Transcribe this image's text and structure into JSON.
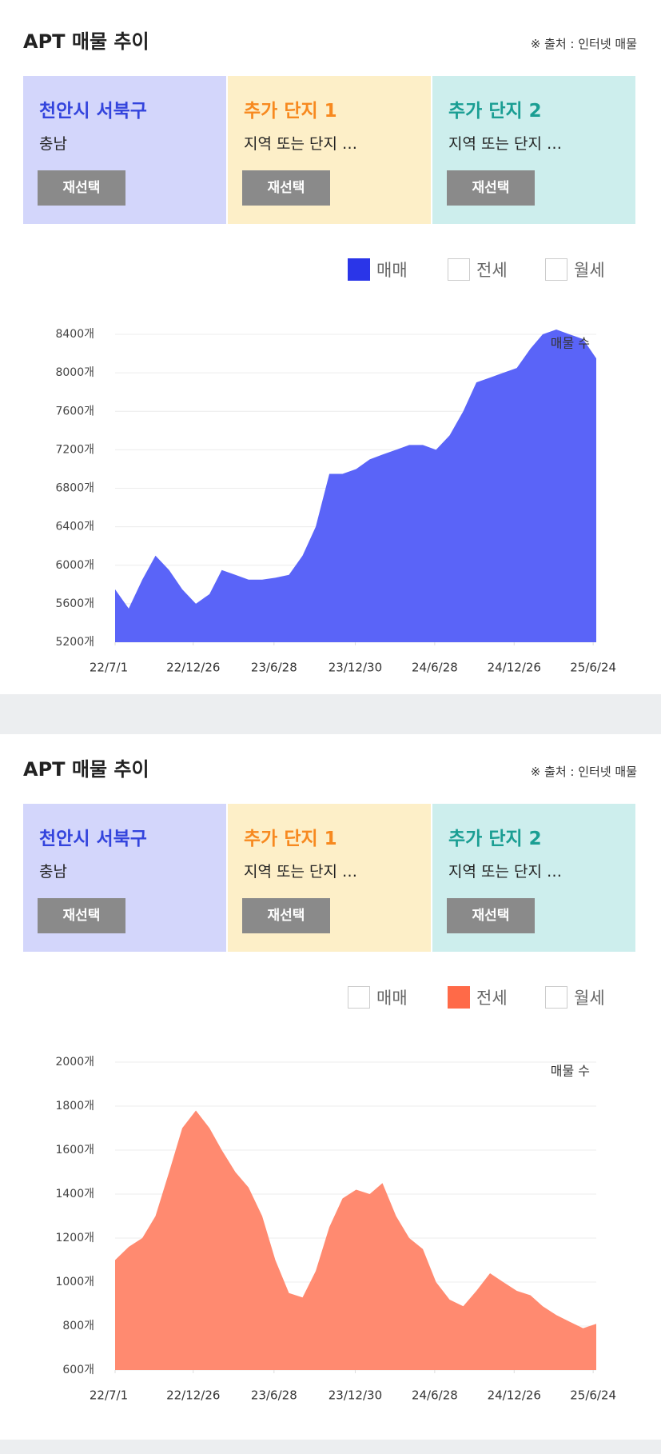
{
  "chart_data": [
    {
      "type": "area",
      "title": "APT 매물 추이",
      "source": "※ 출처 : 인터넷 매물",
      "panels": [
        {
          "title": "천안시 서북구",
          "subtitle": "충남",
          "button": "재선택"
        },
        {
          "title": "추가 단지 1",
          "subtitle": "지역 또는 단지 …",
          "button": "재선택"
        },
        {
          "title": "추가 단지 2",
          "subtitle": "지역 또는 단지 …",
          "button": "재선택"
        }
      ],
      "options": [
        "매매",
        "전세",
        "월세"
      ],
      "selected": 0,
      "check_color": "#2a35e8",
      "x": [
        "22/7/1",
        "22/8/1",
        "22/9/1",
        "22/10/1",
        "22/11/1",
        "22/12/1",
        "23/1/1",
        "23/2/1",
        "23/3/1",
        "23/4/1",
        "23/5/1",
        "23/6/1",
        "23/7/1",
        "23/8/1",
        "23/9/1",
        "23/10/1",
        "23/11/1",
        "23/12/1",
        "24/1/1",
        "24/2/1",
        "24/3/1",
        "24/4/1",
        "24/5/1",
        "24/6/1",
        "24/7/1",
        "24/8/1",
        "24/9/1",
        "24/10/1",
        "24/11/1",
        "24/12/1",
        "25/1/1",
        "25/2/1",
        "25/3/1",
        "25/4/1",
        "25/5/1",
        "25/6/1",
        "25/7/1"
      ],
      "series": [
        {
          "name": "매물 수",
          "color": "#5a64f8",
          "values": [
            5750,
            5550,
            5850,
            6100,
            5950,
            5750,
            5600,
            5700,
            5950,
            5900,
            5850,
            5850,
            5870,
            5900,
            6100,
            6400,
            6950,
            6950,
            7000,
            7100,
            7150,
            7200,
            7250,
            7250,
            7200,
            7350,
            7600,
            7900,
            7950,
            8000,
            8050,
            8250,
            8400,
            8450,
            8400,
            8350,
            8150
          ]
        }
      ],
      "xlim": [
        "22/7/1",
        "25/7/1"
      ],
      "xticks": [
        "22/7/1",
        "22/12/26",
        "23/6/28",
        "23/12/30",
        "24/6/28",
        "24/12/26",
        "25/6/24"
      ],
      "ylim": [
        5200,
        8400
      ],
      "yticks": [
        {
          "value": 5200,
          "label": "5200개"
        },
        {
          "value": 5600,
          "label": "5600개"
        },
        {
          "value": 6000,
          "label": "6000개"
        },
        {
          "value": 6400,
          "label": "6400개"
        },
        {
          "value": 6800,
          "label": "6800개"
        },
        {
          "value": 7200,
          "label": "7200개"
        },
        {
          "value": 7600,
          "label": "7600개"
        },
        {
          "value": 8000,
          "label": "8000개"
        },
        {
          "value": 8400,
          "label": "8400개"
        }
      ],
      "grid": true
    },
    {
      "type": "area",
      "title": "APT 매물 추이",
      "source": "※ 출처 : 인터넷 매물",
      "panels": [
        {
          "title": "천안시 서북구",
          "subtitle": "충남",
          "button": "재선택"
        },
        {
          "title": "추가 단지 1",
          "subtitle": "지역 또는 단지 …",
          "button": "재선택"
        },
        {
          "title": "추가 단지 2",
          "subtitle": "지역 또는 단지 …",
          "button": "재선택"
        }
      ],
      "options": [
        "매매",
        "전세",
        "월세"
      ],
      "selected": 1,
      "check_color": "#ff6a48",
      "x": [
        "22/7/1",
        "22/8/1",
        "22/9/1",
        "22/10/1",
        "22/11/1",
        "22/12/1",
        "23/1/1",
        "23/2/1",
        "23/3/1",
        "23/4/1",
        "23/5/1",
        "23/6/1",
        "23/7/1",
        "23/8/1",
        "23/9/1",
        "23/10/1",
        "23/11/1",
        "23/12/1",
        "24/1/1",
        "24/2/1",
        "24/3/1",
        "24/4/1",
        "24/5/1",
        "24/6/1",
        "24/7/1",
        "24/8/1",
        "24/9/1",
        "24/10/1",
        "24/11/1",
        "24/12/1",
        "25/1/1",
        "25/2/1",
        "25/3/1",
        "25/4/1",
        "25/5/1",
        "25/6/1",
        "25/7/1"
      ],
      "series": [
        {
          "name": "매물 수",
          "color": "#ff8a70",
          "values": [
            1100,
            1160,
            1200,
            1300,
            1500,
            1700,
            1780,
            1700,
            1600,
            1500,
            1430,
            1300,
            1100,
            950,
            930,
            1050,
            1250,
            1380,
            1420,
            1400,
            1450,
            1300,
            1200,
            1150,
            1000,
            920,
            890,
            960,
            1040,
            1000,
            960,
            940,
            890,
            850,
            820,
            790,
            810
          ]
        }
      ],
      "xlim": [
        "22/7/1",
        "25/7/1"
      ],
      "xticks": [
        "22/7/1",
        "22/12/26",
        "23/6/28",
        "23/12/30",
        "24/6/28",
        "24/12/26",
        "25/6/24"
      ],
      "ylim": [
        600,
        2000
      ],
      "yticks": [
        {
          "value": 600,
          "label": "600개"
        },
        {
          "value": 800,
          "label": "800개"
        },
        {
          "value": 1000,
          "label": "1000개"
        },
        {
          "value": 1200,
          "label": "1200개"
        },
        {
          "value": 1400,
          "label": "1400개"
        },
        {
          "value": 1600,
          "label": "1600개"
        },
        {
          "value": 1800,
          "label": "1800개"
        },
        {
          "value": 2000,
          "label": "2000개"
        }
      ],
      "grid": true
    }
  ]
}
